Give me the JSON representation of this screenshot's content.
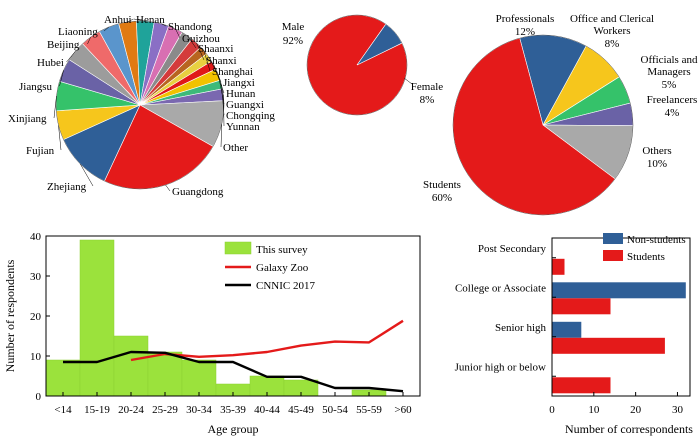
{
  "chart_data": [
    {
      "type": "pie",
      "title": "",
      "slices": [
        {
          "label": "Zhejiang",
          "value": 10,
          "color": "#2f5f97"
        },
        {
          "label": "Fujian",
          "value": 5,
          "color": "#f6c61c"
        },
        {
          "label": "Xinjiang",
          "value": 5,
          "color": "#35c26a"
        },
        {
          "label": "Jiangsu",
          "value": 4,
          "color": "#6a62a6"
        },
        {
          "label": "Hubei",
          "value": 3.5,
          "color": "#9c9c9c"
        },
        {
          "label": "Beijing",
          "value": 3.5,
          "color": "#ef6a6a"
        },
        {
          "label": "Liaoning",
          "value": 3.5,
          "color": "#5a95cc"
        },
        {
          "label": "Anhui",
          "value": 3,
          "color": "#e07a12"
        },
        {
          "label": "Henan",
          "value": 3,
          "color": "#1fa39a"
        },
        {
          "label": "Shandong",
          "value": 2.5,
          "color": "#8a6fc5"
        },
        {
          "label": "Guizhou",
          "value": 2.5,
          "color": "#d86fb2"
        },
        {
          "label": "Shaanxi",
          "value": 2,
          "color": "#8a8a8a"
        },
        {
          "label": "Shanxi",
          "value": 2,
          "color": "#d43b3b"
        },
        {
          "label": "Shanghai",
          "value": 1.5,
          "color": "#b8651f"
        },
        {
          "label": "Jiangxi",
          "value": 1.5,
          "color": "#e8d040"
        },
        {
          "label": "Hunan",
          "value": 1.5,
          "color": "#e01818"
        },
        {
          "label": "Guangxi",
          "value": 2,
          "color": "#f2c200"
        },
        {
          "label": "Chongqing",
          "value": 1.5,
          "color": "#3dba7a"
        },
        {
          "label": "Yunnan",
          "value": 2,
          "color": "#7a68b0"
        },
        {
          "label": "Other",
          "value": 8,
          "color": "#a9a9a9"
        },
        {
          "label": "Guangdong",
          "value": 21,
          "color": "#e41a1a"
        }
      ]
    },
    {
      "type": "pie",
      "slices": [
        {
          "label": "Male",
          "pct": "92%",
          "value": 92,
          "color": "#e41a1a"
        },
        {
          "label": "Female",
          "pct": "8%",
          "value": 8,
          "color": "#2f5f97"
        }
      ]
    },
    {
      "type": "pie",
      "slices": [
        {
          "label": "Professionals",
          "pct": "12%",
          "value": 12,
          "color": "#2f5f97"
        },
        {
          "label": "Office and Clerical",
          "label2": "Workers",
          "pct": "8%",
          "value": 8,
          "color": "#f6c61c"
        },
        {
          "label": "Officials and",
          "label2": "Managers",
          "pct": "5%",
          "value": 5,
          "color": "#35c26a"
        },
        {
          "label": "Freelancers",
          "pct": "4%",
          "value": 4,
          "color": "#6a62a6"
        },
        {
          "label": "Others",
          "pct": "10%",
          "value": 10,
          "color": "#a9a9a9"
        },
        {
          "label": "Students",
          "pct": "60%",
          "value": 60,
          "color": "#e41a1a"
        }
      ]
    },
    {
      "type": "bar",
      "title": "",
      "xlabel": "Age group",
      "ylabel": "Number of respondents",
      "ylim": [
        0,
        40
      ],
      "yticks": [
        0,
        10,
        20,
        30,
        40
      ],
      "categories": [
        "<14",
        "15-19",
        "20-24",
        "25-29",
        "30-34",
        "35-39",
        "40-44",
        "45-49",
        "50-54",
        "55-59",
        ">60"
      ],
      "series": [
        {
          "name": "This survey",
          "kind": "bar",
          "color": "#9be23c",
          "values": [
            9,
            39,
            15,
            11,
            9,
            3,
            5,
            4,
            0,
            1.5,
            0
          ]
        },
        {
          "name": "Galaxy Zoo",
          "kind": "line",
          "color": "#e41a1a",
          "values": [
            null,
            null,
            9,
            10.5,
            9.8,
            10.2,
            11,
            12.6,
            13.6,
            13.4,
            18.8
          ]
        },
        {
          "name": "CNNIC 2017",
          "kind": "line",
          "color": "#000000",
          "values": [
            8.5,
            8.5,
            11,
            10.8,
            8.5,
            8.5,
            4.8,
            4.8,
            2,
            2,
            1.2
          ]
        }
      ],
      "legend": "top-right"
    },
    {
      "type": "bar",
      "orientation": "horizontal",
      "xlabel": "Number of correspondents",
      "xlim": [
        0,
        33
      ],
      "xticks": [
        0,
        10,
        20,
        30
      ],
      "categories": [
        "Post Secondary",
        "College or Associate",
        "Senior high",
        "Junior high or below"
      ],
      "series": [
        {
          "name": "Non-students",
          "color": "#2f5f97",
          "values": [
            0,
            32,
            7,
            0
          ]
        },
        {
          "name": "Students",
          "color": "#e41a1a",
          "values": [
            3,
            14,
            27,
            14
          ]
        }
      ],
      "legend": "top-right"
    }
  ]
}
